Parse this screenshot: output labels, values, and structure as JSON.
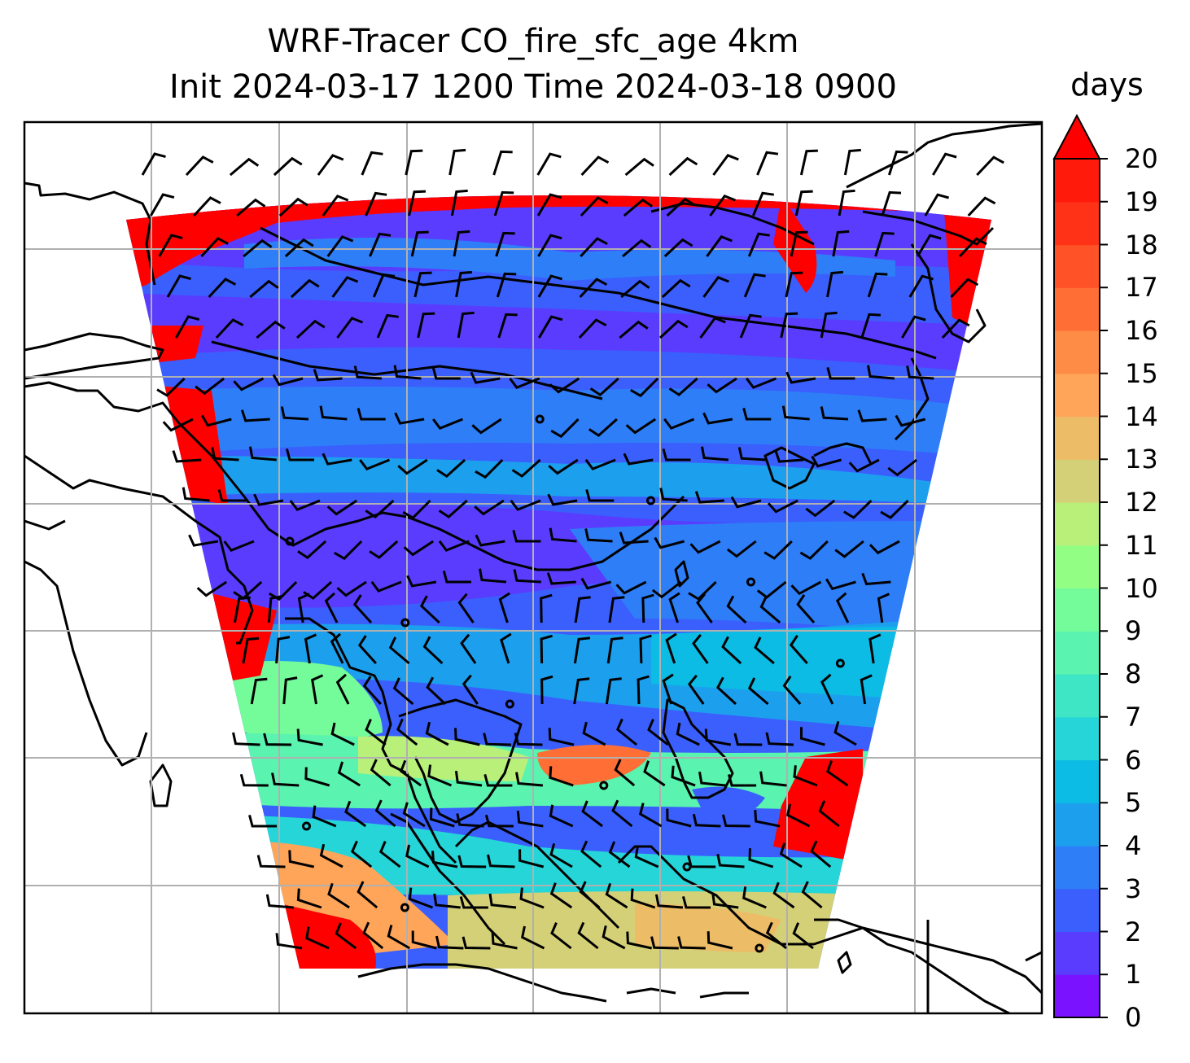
{
  "title": {
    "line1": "WRF-Tracer CO_fire_sfc_age 4km",
    "line2": "Init 2024-03-17 1200 Time 2024-03-18 0900"
  },
  "colorbar": {
    "unit": "days",
    "extend": "max",
    "ticks": [
      "0",
      "1",
      "2",
      "3",
      "4",
      "5",
      "6",
      "7",
      "8",
      "9",
      "10",
      "11",
      "12",
      "13",
      "14",
      "15",
      "16",
      "17",
      "18",
      "19",
      "20"
    ],
    "colors": [
      "#7a12ff",
      "#5a3cfe",
      "#3a5ffd",
      "#2e7ef8",
      "#1ca0ee",
      "#0cbce4",
      "#25d5d8",
      "#3ee6c6",
      "#5af3b0",
      "#74fb9a",
      "#92fe84",
      "#b8f07a",
      "#d4d078",
      "#ecbc66",
      "#ffa55a",
      "#ff8c46",
      "#ff6e35",
      "#ff5226",
      "#ff3218",
      "#ff1a0c"
    ],
    "over_color": "#ff0000"
  },
  "map": {
    "gridlines": true,
    "legend": "right"
  }
}
